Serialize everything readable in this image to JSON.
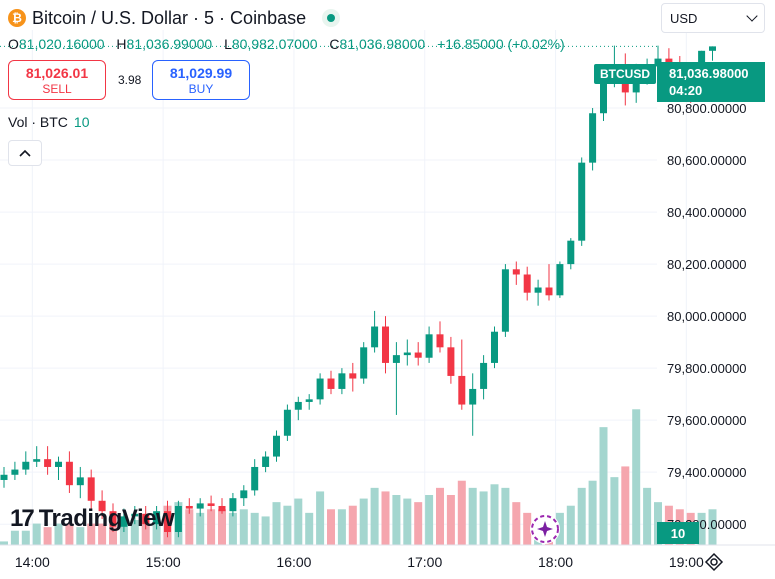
{
  "header": {
    "icon_glyph": "₿",
    "symbol_title": "Bitcoin / U.S. Dollar · 5 · Coinbase",
    "market_status_icon": "market-open-dot"
  },
  "ohlc": {
    "o_label": "O",
    "o_value": "81,020.16000",
    "h_label": "H",
    "h_value": "81,036.99000",
    "l_label": "L",
    "l_value": "80,982.07000",
    "c_label": "C",
    "c_value": "81,036.98000",
    "change": "+16.85000 (+0.02%)"
  },
  "trade": {
    "sell_price": "81,026.01",
    "sell_label": "SELL",
    "spread": "3.98",
    "buy_price": "81,029.99",
    "buy_label": "BUY"
  },
  "volume_legend": {
    "label": "Vol · BTC",
    "value": "10"
  },
  "currency_select": {
    "selected": "USD"
  },
  "price_scale": {
    "symbol_tag": "BTCUSD",
    "last_price": "81,036.98000",
    "countdown": "04:20",
    "volume_value": "10"
  },
  "branding": {
    "mark": "17",
    "name": "TradingView"
  },
  "colors": {
    "up": "#089981",
    "down": "#f23645",
    "up_volume": "#a4d6cf",
    "down_volume": "#f5a6ae",
    "grid": "#f0f3fa"
  },
  "chart_data": {
    "type": "candlestick",
    "interval": "5",
    "y_tick_labels": [
      "79,200.00000",
      "79,400.00000",
      "79,600.00000",
      "79,800.00000",
      "80,000.00000",
      "80,200.00000",
      "80,400.00000",
      "80,600.00000",
      "80,800.00000"
    ],
    "x_tick_labels": [
      "14:00",
      "15:00",
      "16:00",
      "17:00",
      "18:00",
      "19:00"
    ],
    "candles": [
      {
        "o": 79370,
        "h": 79420,
        "l": 79340,
        "c": 79390
      },
      {
        "o": 79390,
        "h": 79440,
        "l": 79370,
        "c": 79410
      },
      {
        "o": 79410,
        "h": 79480,
        "l": 79390,
        "c": 79440
      },
      {
        "o": 79440,
        "h": 79500,
        "l": 79420,
        "c": 79450
      },
      {
        "o": 79450,
        "h": 79500,
        "l": 79390,
        "c": 79420
      },
      {
        "o": 79420,
        "h": 79460,
        "l": 79370,
        "c": 79440
      },
      {
        "o": 79440,
        "h": 79480,
        "l": 79320,
        "c": 79350
      },
      {
        "o": 79350,
        "h": 79420,
        "l": 79300,
        "c": 79380
      },
      {
        "o": 79380,
        "h": 79410,
        "l": 79260,
        "c": 79290
      },
      {
        "o": 79290,
        "h": 79330,
        "l": 79220,
        "c": 79250
      },
      {
        "o": 79250,
        "h": 79280,
        "l": 79170,
        "c": 79190
      },
      {
        "o": 79190,
        "h": 79260,
        "l": 79170,
        "c": 79230
      },
      {
        "o": 79230,
        "h": 79270,
        "l": 79200,
        "c": 79240
      },
      {
        "o": 79240,
        "h": 79270,
        "l": 79180,
        "c": 79200
      },
      {
        "o": 79200,
        "h": 79270,
        "l": 79180,
        "c": 79250
      },
      {
        "o": 79250,
        "h": 79290,
        "l": 79150,
        "c": 79170
      },
      {
        "o": 79170,
        "h": 79290,
        "l": 79150,
        "c": 79270
      },
      {
        "o": 79270,
        "h": 79300,
        "l": 79240,
        "c": 79260
      },
      {
        "o": 79260,
        "h": 79300,
        "l": 79230,
        "c": 79280
      },
      {
        "o": 79280,
        "h": 79310,
        "l": 79250,
        "c": 79270
      },
      {
        "o": 79270,
        "h": 79300,
        "l": 79240,
        "c": 79250
      },
      {
        "o": 79250,
        "h": 79320,
        "l": 79230,
        "c": 79300
      },
      {
        "o": 79300,
        "h": 79350,
        "l": 79270,
        "c": 79330
      },
      {
        "o": 79330,
        "h": 79450,
        "l": 79310,
        "c": 79420
      },
      {
        "o": 79420,
        "h": 79480,
        "l": 79400,
        "c": 79460
      },
      {
        "o": 79460,
        "h": 79560,
        "l": 79440,
        "c": 79540
      },
      {
        "o": 79540,
        "h": 79660,
        "l": 79520,
        "c": 79640
      },
      {
        "o": 79640,
        "h": 79690,
        "l": 79600,
        "c": 79670
      },
      {
        "o": 79670,
        "h": 79700,
        "l": 79640,
        "c": 79680
      },
      {
        "o": 79680,
        "h": 79780,
        "l": 79660,
        "c": 79760
      },
      {
        "o": 79760,
        "h": 79790,
        "l": 79700,
        "c": 79720
      },
      {
        "o": 79720,
        "h": 79800,
        "l": 79700,
        "c": 79780
      },
      {
        "o": 79780,
        "h": 79820,
        "l": 79710,
        "c": 79760
      },
      {
        "o": 79760,
        "h": 79900,
        "l": 79740,
        "c": 79880
      },
      {
        "o": 79880,
        "h": 80020,
        "l": 79860,
        "c": 79960
      },
      {
        "o": 79960,
        "h": 80000,
        "l": 79780,
        "c": 79820
      },
      {
        "o": 79820,
        "h": 79900,
        "l": 79620,
        "c": 79850
      },
      {
        "o": 79850,
        "h": 79910,
        "l": 79810,
        "c": 79860
      },
      {
        "o": 79860,
        "h": 79900,
        "l": 79810,
        "c": 79840
      },
      {
        "o": 79840,
        "h": 79960,
        "l": 79820,
        "c": 79930
      },
      {
        "o": 79930,
        "h": 79980,
        "l": 79860,
        "c": 79880
      },
      {
        "o": 79880,
        "h": 79920,
        "l": 79740,
        "c": 79770
      },
      {
        "o": 79770,
        "h": 79910,
        "l": 79640,
        "c": 79660
      },
      {
        "o": 79660,
        "h": 79780,
        "l": 79540,
        "c": 79720
      },
      {
        "o": 79720,
        "h": 79850,
        "l": 79680,
        "c": 79820
      },
      {
        "o": 79820,
        "h": 79960,
        "l": 79800,
        "c": 79940
      },
      {
        "o": 79940,
        "h": 80200,
        "l": 79920,
        "c": 80180
      },
      {
        "o": 80180,
        "h": 80210,
        "l": 80120,
        "c": 80160
      },
      {
        "o": 80160,
        "h": 80190,
        "l": 80060,
        "c": 80090
      },
      {
        "o": 80090,
        "h": 80140,
        "l": 80040,
        "c": 80110
      },
      {
        "o": 80110,
        "h": 80200,
        "l": 80060,
        "c": 80080
      },
      {
        "o": 80080,
        "h": 80210,
        "l": 80070,
        "c": 80200
      },
      {
        "o": 80200,
        "h": 80300,
        "l": 80180,
        "c": 80290
      },
      {
        "o": 80290,
        "h": 80610,
        "l": 80270,
        "c": 80590
      },
      {
        "o": 80590,
        "h": 80800,
        "l": 80560,
        "c": 80780
      },
      {
        "o": 80780,
        "h": 80930,
        "l": 80750,
        "c": 80900
      },
      {
        "o": 80900,
        "h": 81040,
        "l": 80880,
        "c": 80960
      },
      {
        "o": 80960,
        "h": 81010,
        "l": 80810,
        "c": 80860
      },
      {
        "o": 80860,
        "h": 80970,
        "l": 80820,
        "c": 80940
      },
      {
        "o": 80940,
        "h": 80990,
        "l": 80890,
        "c": 80960
      },
      {
        "o": 80960,
        "h": 81040,
        "l": 80920,
        "c": 80990
      },
      {
        "o": 80990,
        "h": 81030,
        "l": 80940,
        "c": 80960
      },
      {
        "o": 80960,
        "h": 81000,
        "l": 80880,
        "c": 80900
      },
      {
        "o": 80900,
        "h": 80960,
        "l": 80820,
        "c": 80850
      },
      {
        "o": 80850,
        "h": 81020,
        "l": 80840,
        "c": 81020
      },
      {
        "o": 81020,
        "h": 81037,
        "l": 80982,
        "c": 81037
      }
    ],
    "volume_ylim": [
      0,
      42
    ],
    "volume": [
      1,
      4,
      4,
      6,
      5,
      6,
      6,
      5,
      6,
      6,
      5,
      6,
      7,
      8,
      8,
      11,
      12,
      10,
      9,
      10,
      10,
      9,
      10,
      9,
      8,
      12,
      11,
      13,
      9,
      15,
      10,
      10,
      11,
      13,
      16,
      15,
      14,
      13,
      12,
      14,
      16,
      14,
      18,
      16,
      15,
      17,
      16,
      12,
      9,
      7,
      8,
      9,
      11,
      16,
      18,
      33,
      19,
      22,
      38,
      16,
      12,
      11,
      10,
      9,
      9,
      10
    ],
    "ylim": [
      79120,
      81100
    ]
  }
}
